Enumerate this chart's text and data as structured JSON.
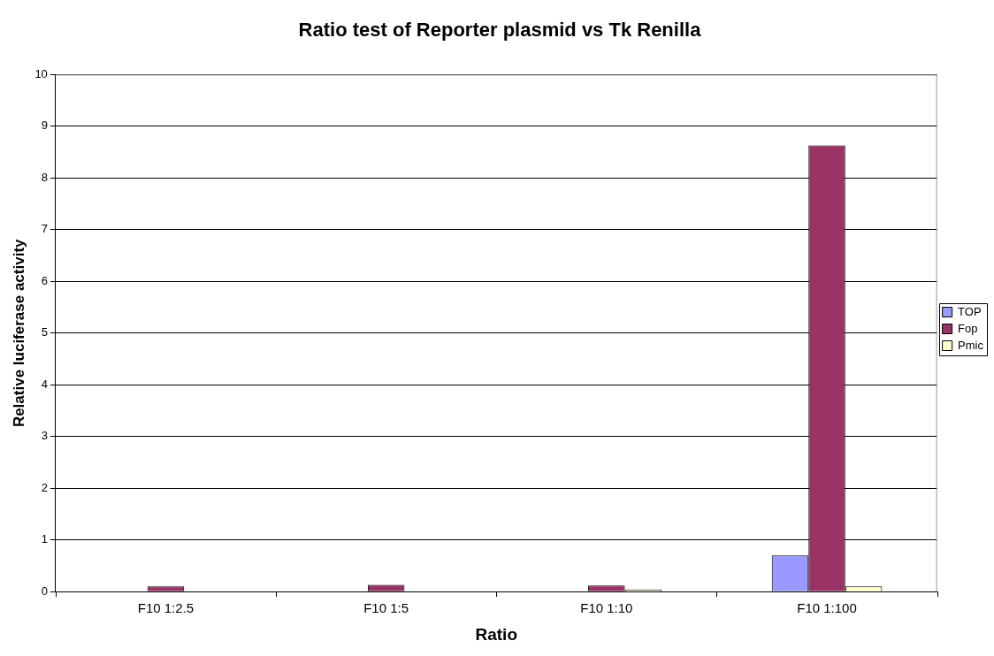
{
  "chart_data": {
    "type": "bar",
    "title": "Ratio test of Reporter plasmid vs Tk Renilla",
    "xlabel": "Ratio",
    "ylabel": "Relative luciferase activity",
    "categories": [
      "F10 1:2.5",
      "F10 1:5",
      "F10 1:10",
      "F10 1:100"
    ],
    "series": [
      {
        "name": "TOP",
        "color": "#9999ff",
        "values": [
          null,
          null,
          null,
          0.7
        ]
      },
      {
        "name": "Fop",
        "color": "#993366",
        "values": [
          0.1,
          0.13,
          0.12,
          8.63
        ]
      },
      {
        "name": "Pmic",
        "color": "#ffffcc",
        "values": [
          null,
          null,
          0.04,
          0.1
        ]
      }
    ],
    "ylim": [
      0,
      10
    ],
    "yticks": [
      0,
      1,
      2,
      3,
      4,
      5,
      6,
      7,
      8,
      9,
      10
    ],
    "grid": "y",
    "legend": "right"
  }
}
